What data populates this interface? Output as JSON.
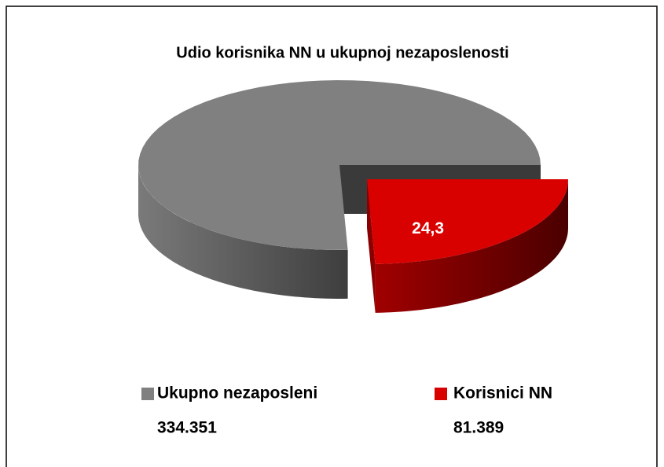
{
  "chart_data": {
    "type": "pie3d",
    "title": "Udio korisnika NN u ukupnoj nezaposlenosti",
    "categories": [
      "Ukupno nezaposleni",
      "Korisnici NN"
    ],
    "values": [
      334351,
      81389
    ],
    "value_labels": [
      "334.351",
      "81.389"
    ],
    "colors": [
      "#808080",
      "#d90000"
    ],
    "data_label": {
      "value": 24.3,
      "label": "24,3"
    }
  }
}
